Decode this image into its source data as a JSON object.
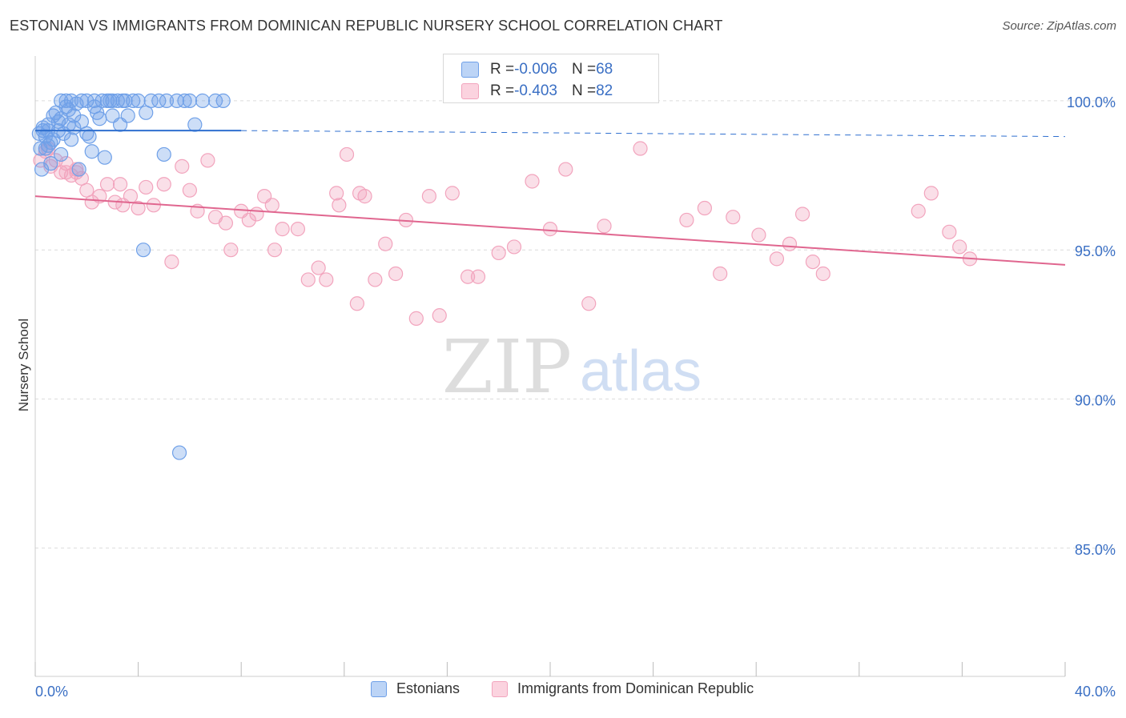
{
  "header": {
    "title": "ESTONIAN VS IMMIGRANTS FROM DOMINICAN REPUBLIC NURSERY SCHOOL CORRELATION CHART",
    "source": "Source: ZipAtlas.com"
  },
  "watermark": {
    "zip": "ZIP",
    "atlas": "atlas"
  },
  "legend": {
    "rows": [
      {
        "r_label": "R = ",
        "r_value": "-0.006",
        "n_label": "N = ",
        "n_value": "68"
      },
      {
        "r_label": "R = ",
        "r_value": "-0.403",
        "n_label": "N = ",
        "n_value": "82"
      }
    ]
  },
  "chart_data": {
    "type": "scatter",
    "title": "ESTONIAN VS IMMIGRANTS FROM DOMINICAN REPUBLIC NURSERY SCHOOL CORRELATION CHART",
    "xlabel": "",
    "ylabel": "Nursery School",
    "xlim": [
      0,
      40
    ],
    "ylim": [
      80.7,
      101.5
    ],
    "x_tick_labels": [
      "0.0%",
      "40.0%"
    ],
    "y_ticks": [
      100,
      95,
      90,
      85
    ],
    "y_tick_labels": [
      "100.0%",
      "95.0%",
      "90.0%",
      "85.0%"
    ],
    "grid": true,
    "legend_position": "top-center",
    "colors": {
      "estonians": "#6fa0e8",
      "dominican": "#f2a4bd",
      "estonians_line": "#2f6fcf",
      "dominican_line": "#e0668f"
    },
    "series": [
      {
        "name": "Estonians",
        "r": -0.006,
        "n": 68,
        "trend": {
          "x": [
            0,
            8
          ],
          "y": [
            99.0,
            99.0
          ],
          "dash_to_x": 40
        },
        "points": [
          [
            0.2,
            98.4
          ],
          [
            0.3,
            99.1
          ],
          [
            0.4,
            98.8
          ],
          [
            0.5,
            99.2
          ],
          [
            0.5,
            98.5
          ],
          [
            0.6,
            97.9
          ],
          [
            0.7,
            98.7
          ],
          [
            0.8,
            99.6
          ],
          [
            0.9,
            99.0
          ],
          [
            1.0,
            99.4
          ],
          [
            1.1,
            98.9
          ],
          [
            1.2,
            99.8
          ],
          [
            1.3,
            99.2
          ],
          [
            1.4,
            98.7
          ],
          [
            1.5,
            99.5
          ],
          [
            1.6,
            99.9
          ],
          [
            1.2,
            100.0
          ],
          [
            1.8,
            99.3
          ],
          [
            2.0,
            100.0
          ],
          [
            2.1,
            98.8
          ],
          [
            2.3,
            99.8
          ],
          [
            2.4,
            99.6
          ],
          [
            2.6,
            100.0
          ],
          [
            2.8,
            100.0
          ],
          [
            3.0,
            100.0
          ],
          [
            3.2,
            100.0
          ],
          [
            3.4,
            100.0
          ],
          [
            3.6,
            99.5
          ],
          [
            3.8,
            100.0
          ],
          [
            4.0,
            100.0
          ],
          [
            4.3,
            99.6
          ],
          [
            4.5,
            100.0
          ],
          [
            4.8,
            100.0
          ],
          [
            5.1,
            100.0
          ],
          [
            5.5,
            100.0
          ],
          [
            6.0,
            100.0
          ],
          [
            6.5,
            100.0
          ],
          [
            7.0,
            100.0
          ],
          [
            0.3,
            99.0
          ],
          [
            0.6,
            98.6
          ],
          [
            0.9,
            99.3
          ],
          [
            1.0,
            98.2
          ],
          [
            1.3,
            99.7
          ],
          [
            1.5,
            99.1
          ],
          [
            1.7,
            97.7
          ],
          [
            2.0,
            98.9
          ],
          [
            2.2,
            98.3
          ],
          [
            2.5,
            99.4
          ],
          [
            2.7,
            98.1
          ],
          [
            3.0,
            99.5
          ],
          [
            3.3,
            99.2
          ],
          [
            0.15,
            98.9
          ],
          [
            0.25,
            97.7
          ],
          [
            0.4,
            98.4
          ],
          [
            0.5,
            99.0
          ],
          [
            0.7,
            99.5
          ],
          [
            1.0,
            100.0
          ],
          [
            1.4,
            100.0
          ],
          [
            1.8,
            100.0
          ],
          [
            2.3,
            100.0
          ],
          [
            2.9,
            100.0
          ],
          [
            3.5,
            100.0
          ],
          [
            4.2,
            95.0
          ],
          [
            5.0,
            98.2
          ],
          [
            5.6,
            88.2
          ],
          [
            6.2,
            99.2
          ],
          [
            5.8,
            100.0
          ],
          [
            7.3,
            100.0
          ]
        ]
      },
      {
        "name": "Immigrants from Dominican Republic",
        "r": -0.403,
        "n": 82,
        "trend": {
          "x": [
            0,
            40
          ],
          "y": [
            96.8,
            94.5
          ]
        },
        "points": [
          [
            0.2,
            98.0
          ],
          [
            0.4,
            98.3
          ],
          [
            0.6,
            97.8
          ],
          [
            0.8,
            98.0
          ],
          [
            1.0,
            97.6
          ],
          [
            1.2,
            97.9
          ],
          [
            1.4,
            97.5
          ],
          [
            1.6,
            97.7
          ],
          [
            1.8,
            97.4
          ],
          [
            2.0,
            97.0
          ],
          [
            2.2,
            96.6
          ],
          [
            2.5,
            96.8
          ],
          [
            2.8,
            97.2
          ],
          [
            3.1,
            96.6
          ],
          [
            3.4,
            96.5
          ],
          [
            3.7,
            96.8
          ],
          [
            4.0,
            96.4
          ],
          [
            4.3,
            97.1
          ],
          [
            4.6,
            96.5
          ],
          [
            5.0,
            97.2
          ],
          [
            5.3,
            94.6
          ],
          [
            5.7,
            97.8
          ],
          [
            6.0,
            97.0
          ],
          [
            6.3,
            96.3
          ],
          [
            6.7,
            98.0
          ],
          [
            7.0,
            96.1
          ],
          [
            7.4,
            95.9
          ],
          [
            7.6,
            95.0
          ],
          [
            8.0,
            96.3
          ],
          [
            8.3,
            96.0
          ],
          [
            8.6,
            96.2
          ],
          [
            8.9,
            96.8
          ],
          [
            9.3,
            95.0
          ],
          [
            9.6,
            95.7
          ],
          [
            10.2,
            95.7
          ],
          [
            10.6,
            94.0
          ],
          [
            11.0,
            94.4
          ],
          [
            11.3,
            94.0
          ],
          [
            11.7,
            96.9
          ],
          [
            12.1,
            98.2
          ],
          [
            12.5,
            93.2
          ],
          [
            12.8,
            96.8
          ],
          [
            13.2,
            94.0
          ],
          [
            13.6,
            95.2
          ],
          [
            14.0,
            94.2
          ],
          [
            14.4,
            96.0
          ],
          [
            14.8,
            92.7
          ],
          [
            15.3,
            96.8
          ],
          [
            15.7,
            92.8
          ],
          [
            16.2,
            96.9
          ],
          [
            16.8,
            94.1
          ],
          [
            17.2,
            94.1
          ],
          [
            18.0,
            94.9
          ],
          [
            18.6,
            95.1
          ],
          [
            19.3,
            97.3
          ],
          [
            20.0,
            95.7
          ],
          [
            20.6,
            97.7
          ],
          [
            21.5,
            93.2
          ],
          [
            22.1,
            95.8
          ],
          [
            23.5,
            98.4
          ],
          [
            25.3,
            96.0
          ],
          [
            26.0,
            96.4
          ],
          [
            26.6,
            94.2
          ],
          [
            27.1,
            96.1
          ],
          [
            28.1,
            95.5
          ],
          [
            28.8,
            94.7
          ],
          [
            29.3,
            95.2
          ],
          [
            29.8,
            96.2
          ],
          [
            30.2,
            94.6
          ],
          [
            30.6,
            94.2
          ],
          [
            34.3,
            96.3
          ],
          [
            34.8,
            96.9
          ],
          [
            35.5,
            95.6
          ],
          [
            35.9,
            95.1
          ],
          [
            36.3,
            94.7
          ],
          [
            11.8,
            96.5
          ],
          [
            9.2,
            96.5
          ],
          [
            12.6,
            96.9
          ],
          [
            3.3,
            97.2
          ],
          [
            1.6,
            97.6
          ],
          [
            0.5,
            98.4
          ],
          [
            1.2,
            97.6
          ]
        ]
      }
    ]
  },
  "bottom_legend": {
    "items": [
      {
        "label": "Estonians"
      },
      {
        "label": "Immigrants from Dominican Republic"
      }
    ]
  }
}
